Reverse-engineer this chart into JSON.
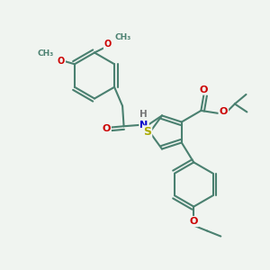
{
  "bg_color": "#f0f4f0",
  "bond_color": "#4a8070",
  "bond_width": 1.5,
  "atom_colors": {
    "O": "#cc0000",
    "N": "#0000cc",
    "S": "#aaaa00",
    "H": "#777777",
    "C": "#4a8070"
  },
  "fig_size": [
    3.0,
    3.0
  ],
  "dpi": 100
}
